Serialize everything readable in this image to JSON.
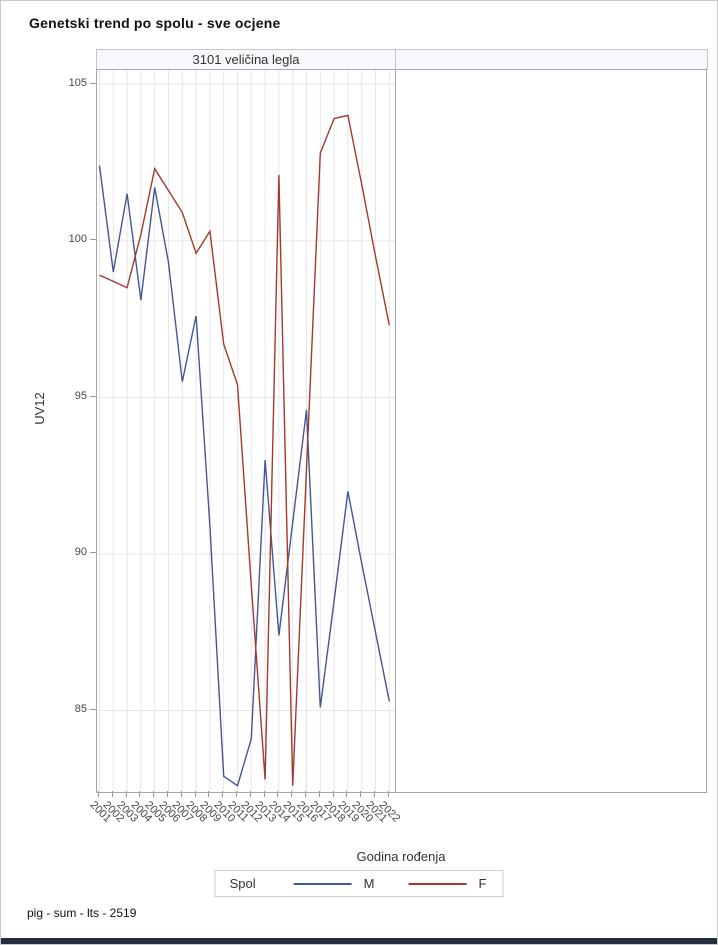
{
  "title": "Genetski trend po spolu - sve ocjene",
  "panel": {
    "header": "3101 veličina legla"
  },
  "footer": "pig - sum - lts - 2519",
  "legend": {
    "title": "Spol",
    "entries": [
      {
        "label": "M",
        "color": "#445694"
      },
      {
        "label": "F",
        "color": "#A23A2E"
      }
    ]
  },
  "chart_data": {
    "type": "line",
    "title": "3101 veličina legla",
    "xlabel": "Godina rođenja",
    "ylabel": "UV12",
    "x": [
      2001,
      2002,
      2003,
      2004,
      2005,
      2006,
      2007,
      2008,
      2009,
      2010,
      2011,
      2012,
      2013,
      2014,
      2015,
      2016,
      2017,
      2018,
      2019,
      2020,
      2021,
      2022
    ],
    "series": [
      {
        "name": "M",
        "color": "#445694",
        "values": [
          102.4,
          99.0,
          101.5,
          98.1,
          101.7,
          99.3,
          95.5,
          97.6,
          90.9,
          82.9,
          82.6,
          84.1,
          93.0,
          87.4,
          91.0,
          94.6,
          85.1,
          88.5,
          92.0,
          89.7,
          87.5,
          85.3
        ]
      },
      {
        "name": "F",
        "color": "#A23A2E",
        "values": [
          98.9,
          98.7,
          98.5,
          100.2,
          102.3,
          101.6,
          100.9,
          99.6,
          100.3,
          96.7,
          95.4,
          89.0,
          82.8,
          102.1,
          82.6,
          92.7,
          102.8,
          103.9,
          104.0,
          101.8,
          99.5,
          97.3
        ]
      }
    ],
    "ylim": [
      82.4,
      105.45
    ],
    "yticks": [
      85,
      90,
      95,
      100,
      105
    ],
    "grid": true,
    "legend_position": "bottom",
    "colors": {
      "gridline": "#e7e7e7",
      "axis": "#a6a6a6",
      "tick": "#9a9a9a"
    }
  }
}
